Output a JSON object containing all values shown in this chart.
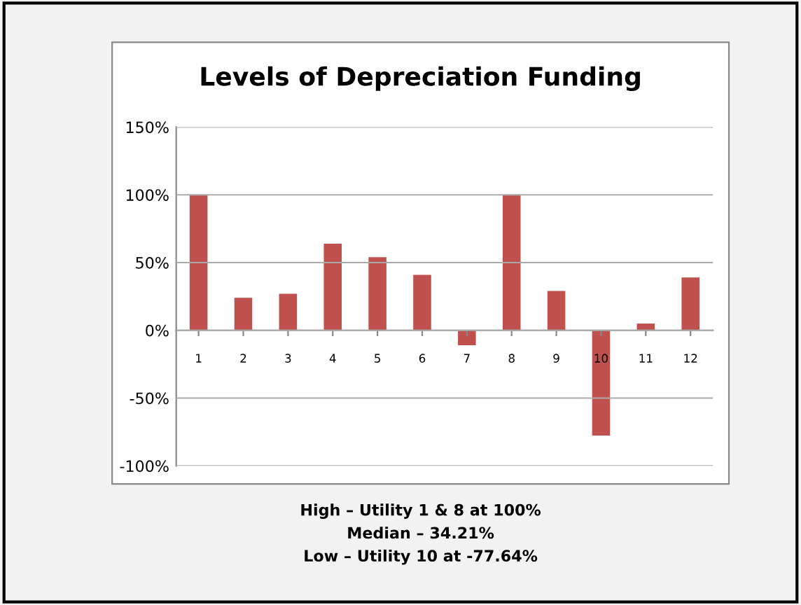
{
  "chart_data": {
    "type": "bar",
    "title": "Levels of Depreciation Funding",
    "categories": [
      "1",
      "2",
      "3",
      "4",
      "5",
      "6",
      "7",
      "8",
      "9",
      "10",
      "11",
      "12"
    ],
    "values": [
      100,
      24,
      27,
      64,
      54,
      41,
      -11,
      100,
      29,
      -77.64,
      5,
      39
    ],
    "color": "#c0504d",
    "ylim": [
      -100,
      150
    ],
    "yticks": [
      {
        "value": -100,
        "label": "-100%"
      },
      {
        "value": -50,
        "label": "-50%"
      },
      {
        "value": 0,
        "label": "0%"
      },
      {
        "value": 50,
        "label": "50%"
      },
      {
        "value": 100,
        "label": "100%"
      },
      {
        "value": 150,
        "label": "150%"
      }
    ],
    "grid": "y",
    "legend": false,
    "annotations": [
      "High – Utility 1 & 8 at 100%",
      "Median – 34.21%",
      "Low – Utility 10 at -77.64%"
    ]
  }
}
